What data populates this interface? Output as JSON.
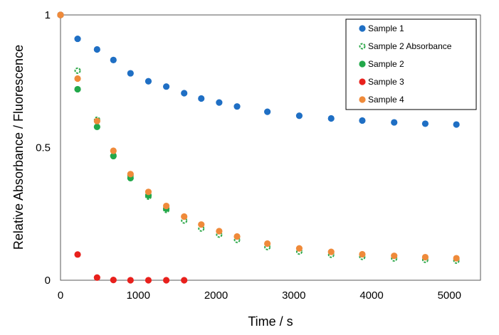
{
  "chart_data": {
    "type": "scatter",
    "title": "",
    "xlabel": "Time / s",
    "ylabel": "Relative Absorbance / Fluorescence",
    "xlim": [
      0,
      5400
    ],
    "ylim": [
      0,
      1
    ],
    "xticks": [
      "0",
      "1000",
      "2000",
      "3000",
      "4000",
      "5000"
    ],
    "yticks": [
      "0",
      "0.5",
      "1"
    ],
    "grid": false,
    "legend_position": "top-right",
    "series": [
      {
        "name": "Sample 1",
        "color": "#1f6fc4",
        "marker": "filled-circle",
        "x": [
          0,
          220,
          470,
          680,
          900,
          1130,
          1360,
          1590,
          1810,
          2040,
          2270,
          2660,
          3070,
          3480,
          3880,
          4290,
          4690,
          5090
        ],
        "y": [
          1.0,
          0.91,
          0.87,
          0.83,
          0.78,
          0.75,
          0.73,
          0.705,
          0.685,
          0.67,
          0.655,
          0.635,
          0.62,
          0.61,
          0.602,
          0.595,
          0.59,
          0.587
        ]
      },
      {
        "name": "Sample 2 Absorbance",
        "color": "#2ea84a",
        "marker": "open-circle-dashed",
        "x": [
          0,
          220,
          470,
          680,
          900,
          1130,
          1360,
          1590,
          1810,
          2040,
          2270,
          2660,
          3070,
          3480,
          3880,
          4290,
          4690,
          5090
        ],
        "y": [
          1.0,
          0.79,
          0.605,
          0.47,
          0.395,
          0.315,
          0.265,
          0.225,
          0.195,
          0.172,
          0.152,
          0.125,
          0.108,
          0.096,
          0.088,
          0.082,
          0.077,
          0.074
        ]
      },
      {
        "name": "Sample 2",
        "color": "#22a84a",
        "marker": "filled-circle",
        "x": [
          0,
          220,
          470,
          680,
          900,
          1130,
          1360
        ],
        "y": [
          1.0,
          0.72,
          0.578,
          0.468,
          0.385,
          0.32,
          0.27
        ]
      },
      {
        "name": "Sample 3",
        "color": "#e8201c",
        "marker": "filled-circle",
        "x": [
          0,
          220,
          470,
          680,
          900,
          1130,
          1360,
          1590
        ],
        "y": [
          1.0,
          0.097,
          0.01,
          0.001,
          0.0,
          0.0,
          0.0,
          0.0
        ]
      },
      {
        "name": "Sample 4",
        "color": "#ef8a3a",
        "marker": "filled-circle",
        "x": [
          0,
          220,
          470,
          680,
          900,
          1130,
          1360,
          1590,
          1810,
          2040,
          2270,
          2660,
          3070,
          3480,
          3880,
          4290,
          4690,
          5090
        ],
        "y": [
          1.0,
          0.76,
          0.6,
          0.488,
          0.4,
          0.333,
          0.28,
          0.24,
          0.21,
          0.185,
          0.165,
          0.138,
          0.12,
          0.107,
          0.098,
          0.092,
          0.087,
          0.083
        ]
      }
    ]
  }
}
